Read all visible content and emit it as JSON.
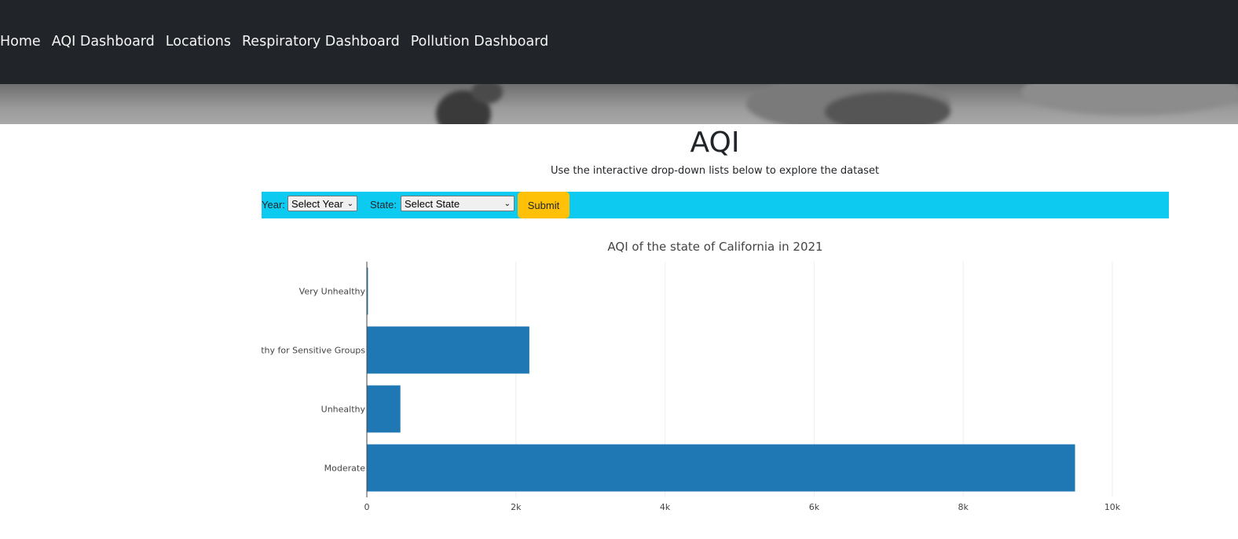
{
  "nav": {
    "items": [
      "Home",
      "AQI Dashboard",
      "Locations",
      "Respiratory Dashboard",
      "Pollution Dashboard"
    ]
  },
  "header": {
    "title": "AQI",
    "subtitle": "Use the interactive drop-down lists below to explore the dataset"
  },
  "filters": {
    "year_label": "Year:",
    "year_value": "Select Year",
    "state_label": "State:",
    "state_value": "Select State",
    "submit_label": "Submit"
  },
  "colors": {
    "navbar": "#212529",
    "filter_bar": "#0dcaf0",
    "submit": "#ffc107",
    "bar": "#1f77b4"
  },
  "chart_data": {
    "type": "bar",
    "orientation": "horizontal",
    "title": "AQI of the state of California in 2021",
    "categories": [
      "Very Unhealthy",
      "Unhealthy for Sensitive Groups",
      "Unhealthy",
      "Moderate"
    ],
    "values": [
      15,
      2180,
      450,
      9500
    ],
    "xlim": [
      0,
      10000
    ],
    "x_ticks": [
      0,
      2000,
      4000,
      6000,
      8000,
      10000
    ],
    "x_tick_labels": [
      "0",
      "2k",
      "4k",
      "6k",
      "8k",
      "10k"
    ],
    "grid": true
  }
}
